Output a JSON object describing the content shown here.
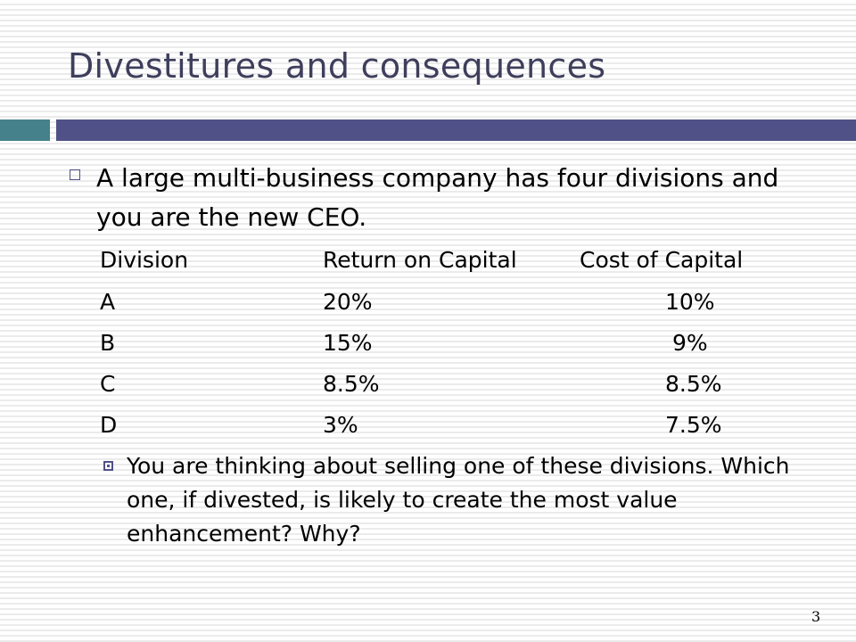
{
  "slide": {
    "title": "Divestitures and consequences",
    "intro": "A large multi-business company has four divisions and you are the new CEO.",
    "table": {
      "headers": [
        "Division",
        "Return on Capital",
        "Cost of Capital"
      ],
      "rows": [
        [
          "A",
          "20%",
          "10%"
        ],
        [
          "B",
          "15%",
          "9%"
        ],
        [
          "C",
          "8.5%",
          "8.5%"
        ],
        [
          "D",
          "3%",
          "7.5%"
        ]
      ]
    },
    "question": "You are thinking about selling one of these divisions. Which one, if divested, is likely to create the most value enhancement? Why?",
    "page_number": "3",
    "colors": {
      "title": "#3e3e5c",
      "accent_teal": "#45818b",
      "accent_purple": "#505187"
    }
  }
}
